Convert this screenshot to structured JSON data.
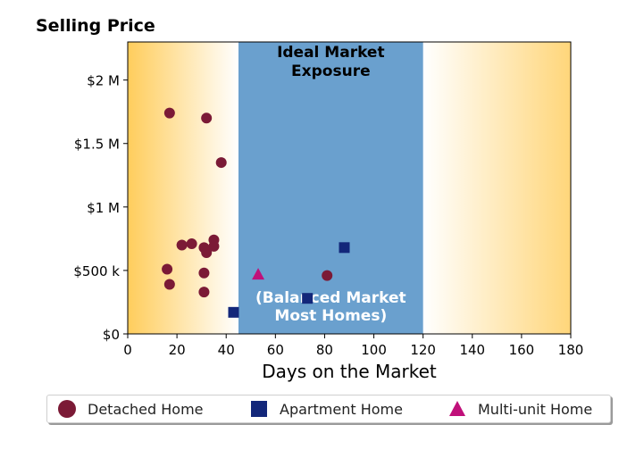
{
  "chart_data": {
    "type": "scatter",
    "title": "Selling Price",
    "xlabel": "Days on the Market",
    "ylabel": "",
    "xlim": [
      0,
      180
    ],
    "ylim": [
      0,
      2300000
    ],
    "xticks": [
      0,
      20,
      40,
      60,
      80,
      100,
      120,
      140,
      160,
      180
    ],
    "xtick_labels": [
      "0",
      "20",
      "40",
      "60",
      "80",
      "100",
      "120",
      "140",
      "160",
      "180"
    ],
    "yticks": [
      0,
      500000,
      1000000,
      1500000,
      2000000
    ],
    "ytick_labels": [
      "$0",
      "$500 k",
      "$1 M",
      "$1.5 M",
      "$2 M"
    ],
    "grid": false,
    "legend_position": "bottom",
    "regions": [
      {
        "x0": 45,
        "x1": 120,
        "color": "#6aa0ce",
        "labels": [
          "Ideal Market",
          "Exposure",
          "(Balanced Market",
          "Most Homes)"
        ]
      }
    ],
    "series": [
      {
        "name": "Detached Home",
        "marker": "circle",
        "color": "#7b1a36",
        "points": [
          [
            17,
            1740000
          ],
          [
            32,
            1700000
          ],
          [
            38,
            1350000
          ],
          [
            22,
            700000
          ],
          [
            26,
            710000
          ],
          [
            31,
            680000
          ],
          [
            35,
            740000
          ],
          [
            35,
            690000
          ],
          [
            32,
            640000
          ],
          [
            16,
            510000
          ],
          [
            31,
            480000
          ],
          [
            17,
            390000
          ],
          [
            31,
            330000
          ],
          [
            81,
            460000
          ]
        ]
      },
      {
        "name": "Apartment Home",
        "marker": "square",
        "color": "#13277a",
        "points": [
          [
            43,
            170000
          ],
          [
            73,
            280000
          ],
          [
            88,
            680000
          ]
        ]
      },
      {
        "name": "Multi-unit Home",
        "marker": "triangle",
        "color": "#c0107a",
        "points": [
          [
            53,
            470000
          ]
        ]
      }
    ]
  }
}
